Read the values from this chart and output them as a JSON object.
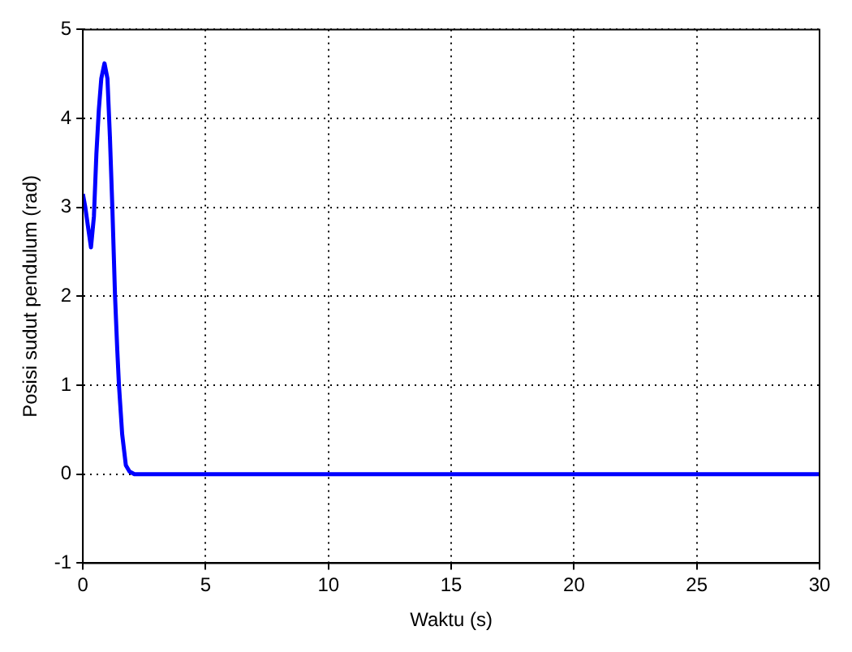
{
  "chart_data": {
    "type": "line",
    "xlabel": "Waktu (s)",
    "ylabel": "Posisi sudut pendulum (rad)",
    "xlim": [
      0,
      30
    ],
    "ylim": [
      -1,
      5
    ],
    "xticks": [
      0,
      5,
      10,
      15,
      20,
      25,
      30
    ],
    "yticks": [
      -1,
      0,
      1,
      2,
      3,
      4,
      5
    ],
    "grid": true,
    "legend": false,
    "marker": "none",
    "line_style": "solid",
    "x": [
      0,
      0.1,
      0.2,
      0.33,
      0.45,
      0.55,
      0.65,
      0.75,
      0.88,
      1.0,
      1.1,
      1.2,
      1.31,
      1.4,
      1.47,
      1.6,
      1.75,
      1.9,
      2.1,
      2.5,
      3,
      5,
      10,
      15,
      20,
      25,
      30
    ],
    "series": [
      {
        "color": "#0000ff",
        "values": [
          3.15,
          3.0,
          2.8,
          2.55,
          2.9,
          3.6,
          4.1,
          4.45,
          4.62,
          4.45,
          3.8,
          3.0,
          2.0,
          1.4,
          1.0,
          0.45,
          0.1,
          0.03,
          0,
          0,
          0,
          0,
          0,
          0,
          0,
          0,
          0
        ]
      }
    ]
  }
}
